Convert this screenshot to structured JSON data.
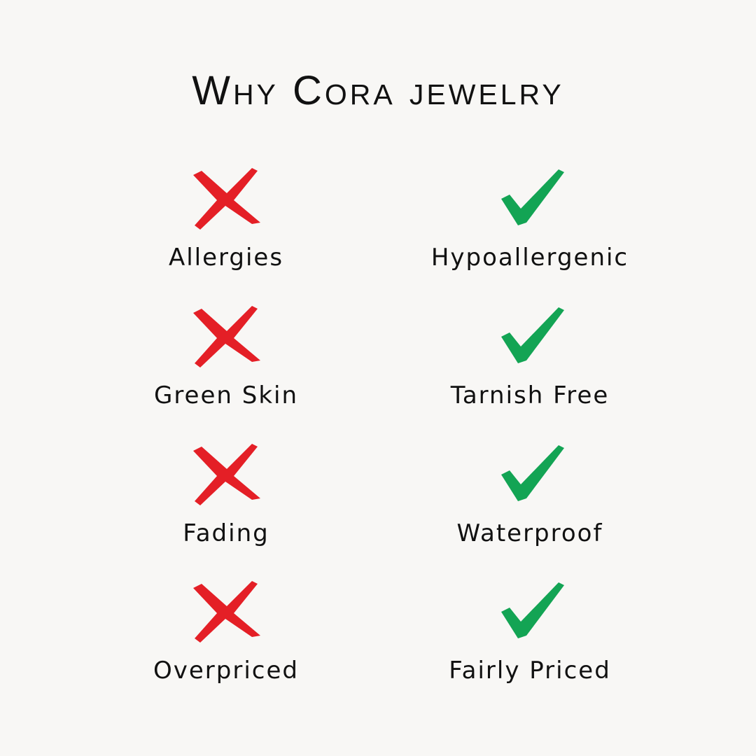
{
  "title": "Why Cora jewelry",
  "colors": {
    "background": "#f8f7f5",
    "cross": "#e41f26",
    "check": "#13a454",
    "text": "#111111"
  },
  "rows": [
    {
      "bad": "Allergies",
      "good": "Hypoallergenic"
    },
    {
      "bad": "Green Skin",
      "good": "Tarnish Free"
    },
    {
      "bad": "Fading",
      "good": "Waterproof"
    },
    {
      "bad": "Overpriced",
      "good": "Fairly Priced"
    }
  ],
  "icons": {
    "bad": "cross-icon",
    "good": "check-icon"
  }
}
